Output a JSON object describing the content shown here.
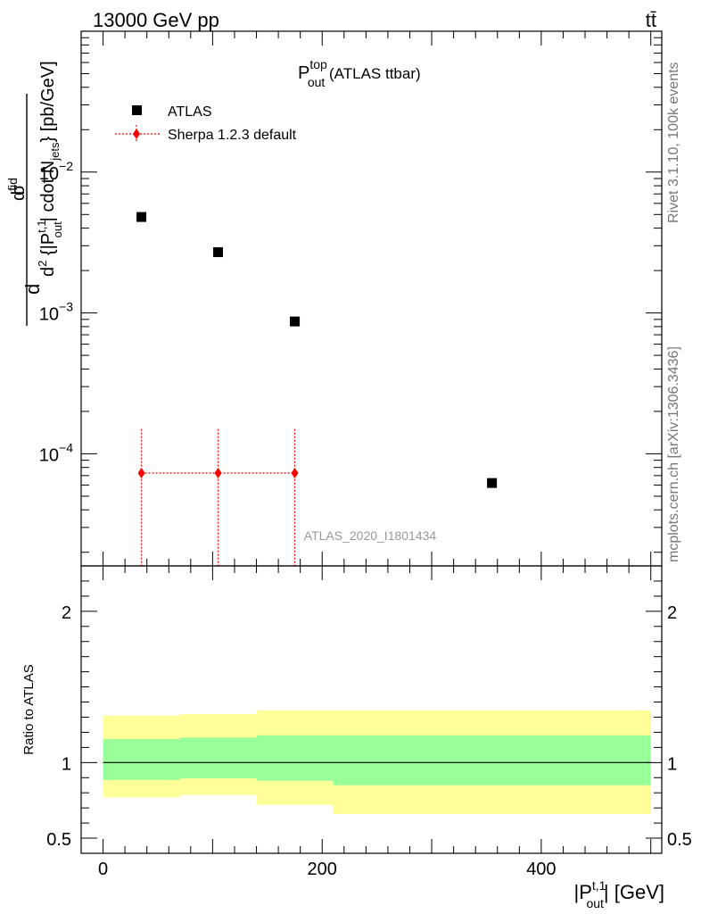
{
  "header": {
    "energy": "13000 GeV pp",
    "process": "tt̄"
  },
  "side_labels": {
    "rivet": "Rivet 3.1.10,  100k events",
    "mcplots": "mcplots.cern.ch [arXiv:1306.3436]"
  },
  "chart_data": [
    {
      "type": "scatter",
      "title": "P_out^top (ATLAS ttbar)",
      "title_parts": {
        "main": "P",
        "sup": "top",
        "sub": "out",
        "rest": " (ATLAS ttbar)"
      },
      "watermark": "ATLAS_2020_I1801434",
      "ylabel": "d²σ^fid / d²{|P_out^t,1| cdot N_jets} [pb/GeV]",
      "ylabel_parts": {
        "top_d": "d",
        "top_sigma": "d",
        "top_sigma2": "σ",
        "top_sup": "fid",
        "bottom": "d",
        "bottom_sup": "2",
        "bottom_rest": " {|P",
        "bottom_pt_sup": "t,1",
        "bottom_pt_sub": "out",
        "bottom_rest2": "| cdot N",
        "bottom_nj_sub": "jets",
        "units": "} [pb/GeV]"
      },
      "yscale": "log",
      "ylim": [
        1.6e-05,
        0.1
      ],
      "xlim": [
        -20,
        510
      ],
      "y_ticks": [
        {
          "value": 0.01,
          "base": "10",
          "exp": "−2"
        },
        {
          "value": 0.001,
          "base": "10",
          "exp": "−3"
        },
        {
          "value": 0.0001,
          "base": "10",
          "exp": "−4"
        }
      ],
      "legend_position": "top-left",
      "series": [
        {
          "name": "ATLAS",
          "marker": "square",
          "color": "#000000",
          "points": [
            {
              "x": 35,
              "y": 0.0048
            },
            {
              "x": 105,
              "y": 0.0027
            },
            {
              "x": 175,
              "y": 0.00087
            },
            {
              "x": 355,
              "y": 6.2e-05
            }
          ]
        },
        {
          "name": "Sherpa 1.2.3 default",
          "marker": "diamond",
          "color": "#ff0000",
          "line": "dotted",
          "points": [
            {
              "x": 35,
              "y": 7.3e-05,
              "yerr_up": 0.00015,
              "yerr_down": 1.6e-05
            },
            {
              "x": 105,
              "y": 7.3e-05,
              "yerr_up": 0.00015,
              "yerr_down": 1.6e-05
            },
            {
              "x": 175,
              "y": 7.3e-05,
              "yerr_up": 0.00015,
              "yerr_down": 1.6e-05
            }
          ]
        }
      ]
    },
    {
      "type": "area",
      "ylabel": "Ratio to ATLAS",
      "xlabel": "|P_out^t,1| [GeV]",
      "xlabel_parts": {
        "pre": "|P",
        "sup": "t,1",
        "sub": "out",
        "post": "| [GeV]"
      },
      "xlim": [
        -20,
        510
      ],
      "ylim": [
        0.4,
        2.3
      ],
      "x_ticks": [
        0,
        200,
        400
      ],
      "y_ticks": [
        0.5,
        1,
        2
      ],
      "reference_line": 1,
      "bins": [
        {
          "x0": 0,
          "x1": 70,
          "inner": [
            0.885,
            1.155
          ],
          "outer": [
            0.77,
            1.31
          ]
        },
        {
          "x0": 70,
          "x1": 140,
          "inner": [
            0.895,
            1.165
          ],
          "outer": [
            0.785,
            1.32
          ]
        },
        {
          "x0": 140,
          "x1": 210,
          "inner": [
            0.88,
            1.18
          ],
          "outer": [
            0.72,
            1.345
          ]
        },
        {
          "x0": 210,
          "x1": 500,
          "inner": [
            0.85,
            1.18
          ],
          "outer": [
            0.66,
            1.345
          ]
        }
      ],
      "colors": {
        "inner": "#99ff99",
        "outer": "#ffff99"
      }
    }
  ]
}
